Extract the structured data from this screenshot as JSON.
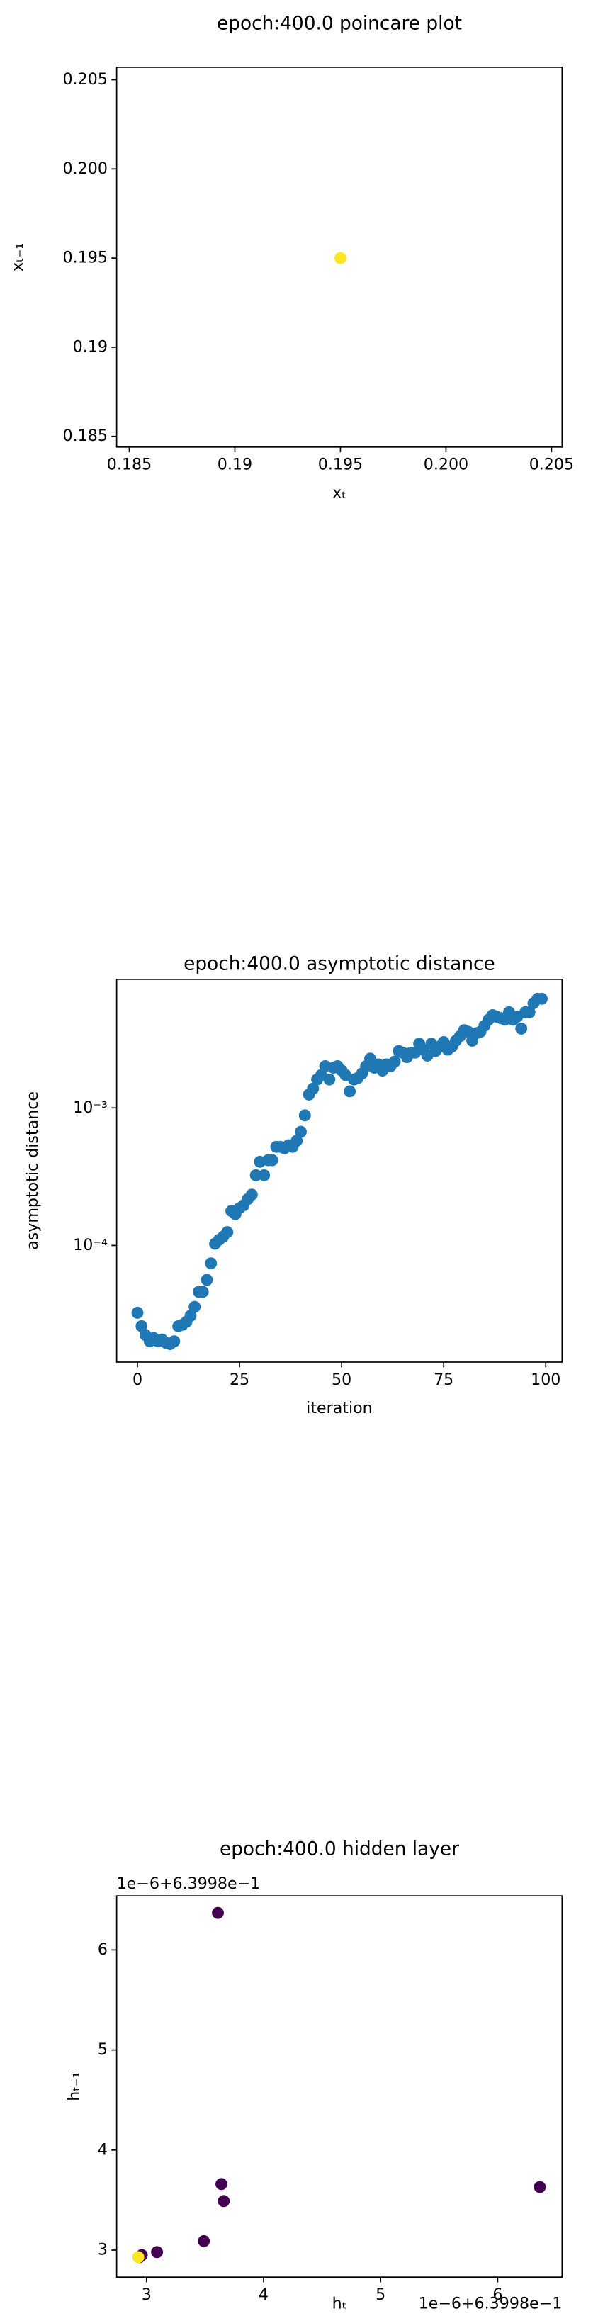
{
  "chart_data": [
    {
      "type": "scatter",
      "title": "epoch:400.0 poincare plot",
      "x_label": "xₜ",
      "y_label": "xₜ₋₁",
      "x": [
        0.195
      ],
      "y": [
        0.195
      ],
      "color": "#fde725",
      "xlim": [
        0.1844,
        0.2055
      ],
      "ylim": [
        0.1844,
        0.2057
      ],
      "xticks": [
        0.185,
        0.19,
        0.195,
        {
          "value": 0.2,
          "label": "0.200"
        },
        0.205
      ],
      "yticks": [
        0.185,
        0.19,
        0.195,
        {
          "value": 0.2,
          "label": "0.200"
        },
        0.205
      ]
    },
    {
      "type": "scatter",
      "title": "epoch:400.0 asymptotic distance",
      "x_label": "iteration",
      "y_label": "asymptotic distance",
      "y_scale": "log",
      "color": "#1f77b4",
      "x": [
        0,
        1,
        2,
        3,
        4,
        5,
        6,
        7,
        8,
        9,
        10,
        11,
        12,
        13,
        14,
        15,
        16,
        17,
        18,
        19,
        20,
        21,
        22,
        23,
        24,
        25,
        26,
        27,
        28,
        29,
        30,
        31,
        32,
        33,
        34,
        35,
        36,
        37,
        38,
        39,
        40,
        41,
        42,
        43,
        44,
        45,
        46,
        47,
        48,
        49,
        50,
        51,
        52,
        53,
        54,
        55,
        56,
        57,
        58,
        59,
        60,
        61,
        62,
        63,
        64,
        65,
        66,
        67,
        68,
        69,
        70,
        71,
        72,
        73,
        74,
        75,
        76,
        77,
        78,
        79,
        80,
        81,
        82,
        83,
        84,
        85,
        86,
        87,
        88,
        89,
        90,
        91,
        92,
        93,
        94,
        95,
        96,
        97,
        98,
        99
      ],
      "y": [
        3.24e-05,
        2.59e-05,
        2.23e-05,
        2.01e-05,
        2.12e-05,
        2.01e-05,
        2.07e-05,
        1.96e-05,
        1.92e-05,
        2.01e-05,
        2.59e-05,
        2.65e-05,
        2.79e-05,
        3.08e-05,
        3.58e-05,
        4.6e-05,
        4.6e-05,
        5.62e-05,
        7.41e-05,
        0.000103,
        0.00011,
        0.000116,
        0.000125,
        0.000178,
        0.000169,
        0.000187,
        0.000196,
        0.000217,
        0.000234,
        0.000324,
        0.000406,
        0.000324,
        0.000417,
        0.000417,
        0.000521,
        0.000521,
        0.000509,
        0.000535,
        0.000521,
        0.000577,
        0.00067,
        0.000883,
        0.00125,
        0.00138,
        0.00161,
        0.00173,
        0.00201,
        0.00161,
        0.00196,
        0.00201,
        0.00187,
        0.00173,
        0.00132,
        0.00161,
        0.00165,
        0.00178,
        0.00201,
        0.00228,
        0.00196,
        0.00207,
        0.00187,
        0.00207,
        0.00201,
        0.00217,
        0.00259,
        0.00252,
        0.00234,
        0.00252,
        0.00252,
        0.00293,
        0.00265,
        0.0024,
        0.00293,
        0.00259,
        0.00279,
        0.00301,
        0.00265,
        0.00279,
        0.00308,
        0.00332,
        0.00367,
        0.00358,
        0.00308,
        0.00349,
        0.00358,
        0.00396,
        0.00438,
        0.00472,
        0.0046,
        0.00449,
        0.00438,
        0.00496,
        0.00438,
        0.0046,
        0.00377,
        0.00496,
        0.00496,
        0.00577,
        0.00621,
        0.00621
      ],
      "xlim": [
        -5.1,
        104
      ],
      "ylim": [
        1.42e-05,
        0.0086
      ],
      "xticks": [
        0,
        25,
        50,
        75,
        100
      ],
      "yticks": [
        {
          "value": 0.0001,
          "label": "10⁻⁴"
        },
        {
          "value": 0.001,
          "label": "10⁻³"
        }
      ]
    },
    {
      "type": "scatter",
      "title": "epoch:400.0 hidden layer",
      "x_label": "hₜ",
      "y_label": "hₜ₋₁",
      "x_offset_label": "1e−6+6.3998e−1",
      "y_offset_label": "1e−6+6.3998e−1",
      "x": [
        6.36,
        3.61,
        3.64,
        3.66,
        3.49,
        3.09,
        2.96,
        2.95,
        2.94,
        2.93
      ],
      "y": [
        3.63,
        6.37,
        3.66,
        3.49,
        3.09,
        2.98,
        2.95,
        2.94,
        2.93,
        2.93
      ],
      "colors": [
        "#440154",
        "#440154",
        "#440154",
        "#440154",
        "#440154",
        "#440154",
        "#440154",
        "#440154",
        "#440154",
        "#fde725"
      ],
      "xlim": [
        2.745,
        6.55
      ],
      "ylim": [
        2.73,
        6.54
      ],
      "xticks": [
        3,
        4,
        5,
        6
      ],
      "yticks": [
        3,
        4,
        5,
        6
      ]
    }
  ]
}
